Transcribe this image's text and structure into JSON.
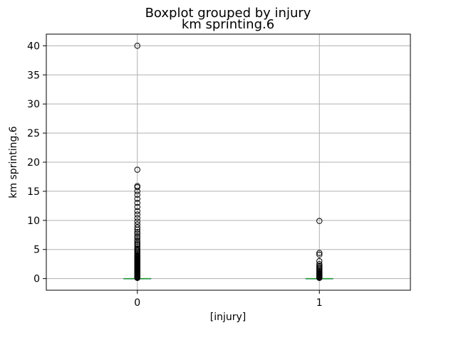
{
  "chart_data": {
    "type": "box",
    "suptitle": "Boxplot grouped by injury",
    "title": "km sprinting.6",
    "xlabel": "[injury]",
    "ylabel": "km sprinting.6",
    "categories": [
      "0",
      "1"
    ],
    "ylim": [
      -2,
      42
    ],
    "yticks": [
      0,
      5,
      10,
      15,
      20,
      25,
      30,
      35,
      40
    ],
    "grid": true,
    "colors": {
      "box": "#1f77b4",
      "median": "#2ca02c",
      "flier": "#000000",
      "grid": "#b0b0b0",
      "axes": "#000000"
    },
    "series": [
      {
        "category": "0",
        "q1": 0,
        "median": 0,
        "q3": 0,
        "whisker_low": 0,
        "whisker_high": 0,
        "outliers": [
          0.1,
          0.2,
          0.3,
          0.4,
          0.5,
          0.6,
          0.7,
          0.8,
          0.9,
          1.0,
          1.1,
          1.2,
          1.3,
          1.4,
          1.5,
          1.6,
          1.7,
          1.8,
          1.9,
          2.0,
          2.1,
          2.2,
          2.3,
          2.4,
          2.5,
          2.6,
          2.7,
          2.8,
          2.9,
          3.0,
          3.1,
          3.2,
          3.3,
          3.4,
          3.5,
          3.6,
          3.7,
          3.8,
          3.9,
          4.0,
          4.2,
          4.4,
          4.6,
          4.8,
          5.0,
          5.2,
          5.5,
          5.8,
          6.0,
          6.3,
          6.6,
          7.0,
          7.3,
          7.7,
          8.0,
          8.4,
          8.8,
          9.3,
          9.8,
          10.4,
          11.0,
          11.6,
          12.3,
          13.0,
          13.7,
          14.4,
          15.0,
          15.7,
          15.9,
          18.7,
          40.0
        ]
      },
      {
        "category": "1",
        "q1": 0,
        "median": 0,
        "q3": 0,
        "whisker_low": 0,
        "whisker_high": 0,
        "outliers": [
          0.1,
          0.2,
          0.3,
          0.4,
          0.5,
          0.6,
          0.7,
          0.8,
          0.9,
          1.0,
          1.2,
          1.4,
          1.6,
          1.8,
          2.0,
          2.2,
          2.5,
          3.0,
          4.1,
          4.4,
          9.9
        ]
      }
    ]
  }
}
